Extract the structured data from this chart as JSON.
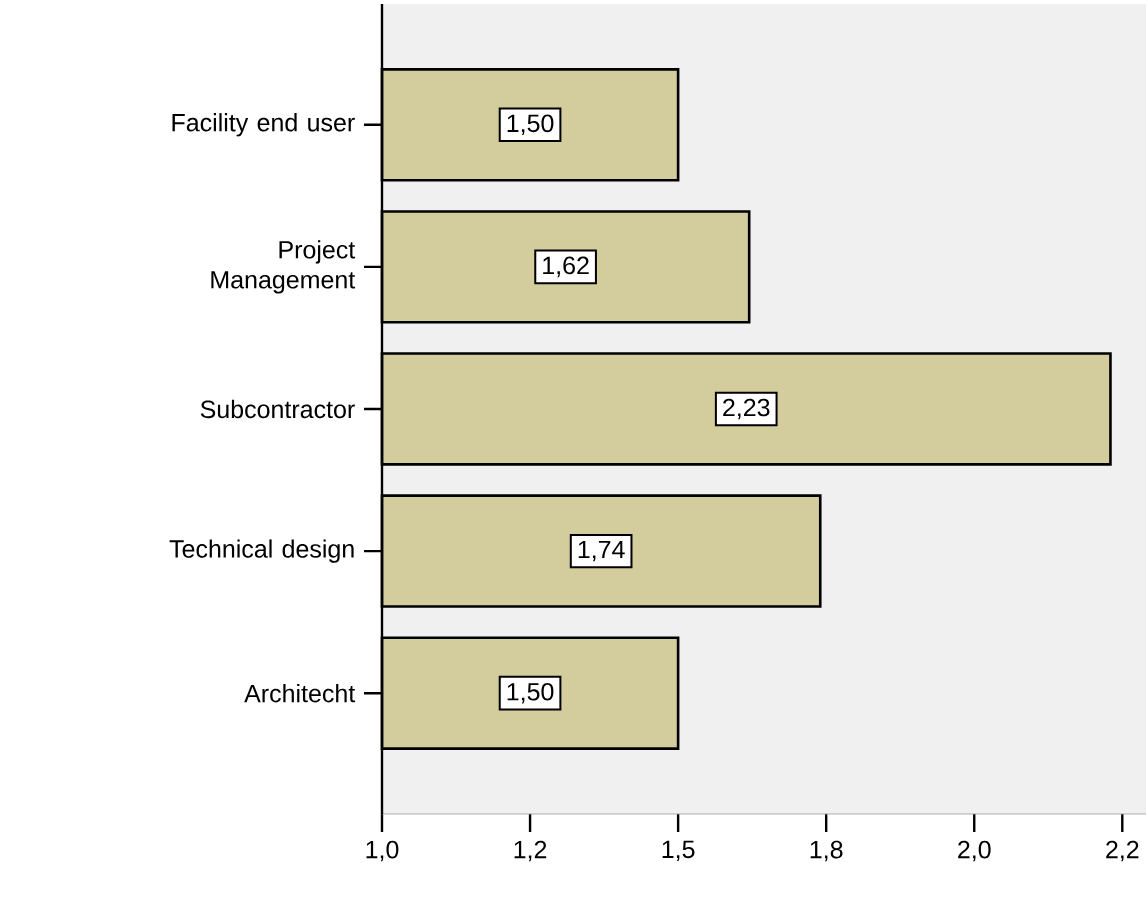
{
  "chart_data": {
    "type": "bar",
    "orientation": "horizontal",
    "categories": [
      "Facility end user",
      "Project Management",
      "Subcontractor",
      "Technical design",
      "Architecht"
    ],
    "values": [
      1.5,
      1.62,
      2.23,
      1.74,
      1.5
    ],
    "value_labels": [
      "1,50",
      "1,62",
      "2,23",
      "1,74",
      "1,50"
    ],
    "color": "#d3cc9c",
    "xlim": [
      1.0,
      2.29
    ],
    "xticks": [
      {
        "value": 1.0,
        "label": "1,0"
      },
      {
        "value": 1.25,
        "label": "1,2"
      },
      {
        "value": 1.5,
        "label": "1,5"
      },
      {
        "value": 1.75,
        "label": "1,8"
      },
      {
        "value": 2.0,
        "label": "2,0"
      },
      {
        "value": 2.25,
        "label": "2,2"
      }
    ],
    "grid": false
  }
}
